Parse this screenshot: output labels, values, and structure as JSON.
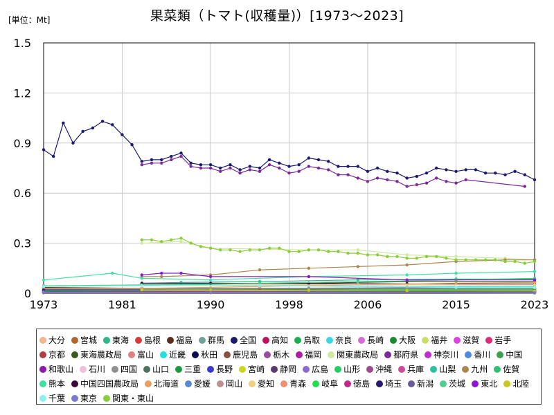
{
  "chart_data": {
    "type": "line",
    "title": "果菜類（トマト(収穫量)）[1973～2023]",
    "unit_label": "[単位：Mt]",
    "xlabel": "",
    "ylabel": "",
    "xlim": [
      1973,
      2023
    ],
    "ylim": [
      0,
      1.5
    ],
    "yticks": [
      0,
      0.3,
      0.6,
      0.9,
      1.2,
      1.5
    ],
    "ytick_labels": [
      "0",
      "0.3",
      "0.6",
      "0.9",
      "1.2",
      "1.5"
    ],
    "xticks": [
      1973,
      1981,
      1990,
      1998,
      2006,
      2015,
      2023
    ],
    "grid": true,
    "legend_position": "bottom",
    "series": [
      {
        "name": "大分",
        "color": "#f5b58a",
        "x": [
          1973,
          1983,
          1995,
          2010,
          2023
        ],
        "values": [
          0.01,
          0.01,
          0.012,
          0.015,
          0.016
        ]
      },
      {
        "name": "宮城",
        "color": "#b4632c",
        "x": [
          1973,
          1983,
          1995,
          2010,
          2023
        ],
        "values": [
          0.012,
          0.01,
          0.01,
          0.012,
          0.012
        ]
      },
      {
        "name": "東海",
        "color": "#2cb88a",
        "x": [
          1983,
          1987,
          1995,
          2005,
          2015,
          2023
        ],
        "values": [
          0.06,
          0.065,
          0.07,
          0.08,
          0.085,
          0.085
        ]
      },
      {
        "name": "島根",
        "color": "#d83a3a",
        "x": [
          1973,
          1990,
          2023
        ],
        "values": [
          0.005,
          0.004,
          0.004
        ]
      },
      {
        "name": "福島",
        "color": "#5a2e1e",
        "x": [
          1973,
          1983,
          1995,
          2005,
          2015,
          2023
        ],
        "values": [
          0.035,
          0.03,
          0.03,
          0.03,
          0.03,
          0.03
        ]
      },
      {
        "name": "群馬",
        "color": "#6fa09a",
        "x": [
          1973,
          1983,
          1995,
          2005,
          2015,
          2023
        ],
        "values": [
          0.025,
          0.025,
          0.025,
          0.025,
          0.022,
          0.022
        ]
      },
      {
        "name": "全国",
        "color": "#1a1a6e",
        "x": [
          1973,
          1974,
          1975,
          1976,
          1977,
          1978,
          1979,
          1980,
          1981,
          1982,
          1983,
          1984,
          1985,
          1986,
          1987,
          1988,
          1989,
          1990,
          1991,
          1992,
          1993,
          1994,
          1995,
          1996,
          1997,
          1998,
          1999,
          2000,
          2001,
          2002,
          2003,
          2004,
          2005,
          2006,
          2007,
          2008,
          2009,
          2010,
          2011,
          2012,
          2013,
          2014,
          2015,
          2016,
          2017,
          2018,
          2019,
          2020,
          2021,
          2022,
          2023
        ],
        "values": [
          0.86,
          0.82,
          1.02,
          0.9,
          0.97,
          0.99,
          1.03,
          1.01,
          0.95,
          0.89,
          0.79,
          0.8,
          0.8,
          0.82,
          0.84,
          0.78,
          0.77,
          0.77,
          0.75,
          0.77,
          0.74,
          0.76,
          0.75,
          0.8,
          0.78,
          0.76,
          0.77,
          0.81,
          0.8,
          0.79,
          0.76,
          0.76,
          0.76,
          0.73,
          0.75,
          0.73,
          0.72,
          0.69,
          0.7,
          0.72,
          0.75,
          0.74,
          0.73,
          0.74,
          0.74,
          0.72,
          0.72,
          0.71,
          0.73,
          0.71,
          0.68
        ]
      },
      {
        "name": "高知",
        "color": "#c01060",
        "x": [
          1973,
          1983,
          1995,
          2005,
          2015,
          2023
        ],
        "values": [
          0.02,
          0.02,
          0.02,
          0.025,
          0.025,
          0.025
        ]
      },
      {
        "name": "鳥取",
        "color": "#1ab050",
        "x": [
          1973,
          1990,
          2023
        ],
        "values": [
          0.01,
          0.01,
          0.008
        ]
      },
      {
        "name": "奈良",
        "color": "#3ad8e0",
        "x": [
          1973,
          1990,
          2023
        ],
        "values": [
          0.005,
          0.004,
          0.004
        ]
      },
      {
        "name": "長崎",
        "color": "#d86ad8",
        "x": [
          1973,
          1983,
          1995,
          2010,
          2023
        ],
        "values": [
          0.01,
          0.012,
          0.012,
          0.012,
          0.012
        ]
      },
      {
        "name": "大阪",
        "color": "#1a8a30",
        "x": [
          1973,
          1990,
          2023
        ],
        "values": [
          0.004,
          0.003,
          0.002
        ]
      },
      {
        "name": "福井",
        "color": "#c8e06a",
        "x": [
          1973,
          1990,
          2023
        ],
        "values": [
          0.005,
          0.004,
          0.004
        ]
      },
      {
        "name": "滋賀",
        "color": "#e040e0",
        "x": [
          1973,
          1990,
          2023
        ],
        "values": [
          0.005,
          0.004,
          0.004
        ]
      },
      {
        "name": "岩手",
        "color": "#e02a7a",
        "x": [
          1973,
          1983,
          1995,
          2010,
          2023
        ],
        "values": [
          0.01,
          0.012,
          0.014,
          0.015,
          0.015
        ]
      },
      {
        "name": "京都",
        "color": "#b04040",
        "x": [
          1973,
          1990,
          2023
        ],
        "values": [
          0.006,
          0.005,
          0.004
        ]
      },
      {
        "name": "東海農政局",
        "color": "#3a5a1a",
        "x": [
          1983,
          1990,
          2000,
          2010,
          2023
        ],
        "values": [
          0.05,
          0.055,
          0.06,
          0.07,
          0.07
        ]
      },
      {
        "name": "富山",
        "color": "#e08080",
        "x": [
          1973,
          1990,
          2023
        ],
        "values": [
          0.003,
          0.003,
          0.002
        ]
      },
      {
        "name": "近畿",
        "color": "#20e0e0",
        "x": [
          1983,
          1990,
          2000,
          2010,
          2023
        ],
        "values": [
          0.05,
          0.05,
          0.045,
          0.04,
          0.04
        ]
      },
      {
        "name": "秋田",
        "color": "#0a0a50",
        "x": [
          1973,
          1990,
          2023
        ],
        "values": [
          0.01,
          0.01,
          0.01
        ]
      },
      {
        "name": "鹿児島",
        "color": "#8a5040",
        "x": [
          1973,
          1990,
          2023
        ],
        "values": [
          0.005,
          0.006,
          0.006
        ]
      },
      {
        "name": "栃木",
        "color": "#9a4aa0",
        "x": [
          1973,
          1983,
          1995,
          2010,
          2023
        ],
        "values": [
          0.03,
          0.03,
          0.03,
          0.033,
          0.033
        ]
      },
      {
        "name": "福岡",
        "color": "#b01aa0",
        "x": [
          1973,
          1983,
          1995,
          2010,
          2023
        ],
        "values": [
          0.02,
          0.02,
          0.02,
          0.02,
          0.018
        ]
      },
      {
        "name": "関東農政局",
        "color": "#d0e8a0",
        "x": [
          1983,
          1987,
          1990,
          2000,
          2005,
          2010,
          2015,
          2020,
          2023
        ],
        "values": [
          0.3,
          0.31,
          0.27,
          0.26,
          0.26,
          0.23,
          0.22,
          0.21,
          0.2
        ]
      },
      {
        "name": "都府県",
        "color": "#7a2a9a",
        "x": [
          1983,
          1984,
          1985,
          1986,
          1987,
          1988,
          1989,
          1990,
          1991,
          1992,
          1993,
          1994,
          1995,
          1996,
          1997,
          1998,
          1999,
          2000,
          2001,
          2002,
          2003,
          2004,
          2005,
          2006,
          2007,
          2008,
          2009,
          2010,
          2011,
          2012,
          2013,
          2014,
          2015,
          2016,
          2022
        ],
        "values": [
          0.77,
          0.78,
          0.78,
          0.8,
          0.82,
          0.76,
          0.75,
          0.75,
          0.73,
          0.75,
          0.72,
          0.74,
          0.73,
          0.77,
          0.75,
          0.72,
          0.73,
          0.76,
          0.75,
          0.74,
          0.71,
          0.71,
          0.69,
          0.67,
          0.69,
          0.68,
          0.67,
          0.64,
          0.65,
          0.66,
          0.69,
          0.67,
          0.66,
          0.68,
          0.64
        ]
      },
      {
        "name": "神奈川",
        "color": "#c02ad0",
        "x": [
          1973,
          1990,
          2023
        ],
        "values": [
          0.01,
          0.01,
          0.009
        ]
      },
      {
        "name": "香川",
        "color": "#4a8ae0",
        "x": [
          1973,
          1990,
          2023
        ],
        "values": [
          0.005,
          0.004,
          0.003
        ]
      },
      {
        "name": "中国",
        "color": "#3aa050",
        "x": [
          1983,
          1990,
          2000,
          2010,
          2023
        ],
        "values": [
          0.03,
          0.03,
          0.028,
          0.026,
          0.025
        ]
      },
      {
        "name": "和歌山",
        "color": "#8a1ab0",
        "x": [
          1973,
          1990,
          2023
        ],
        "values": [
          0.008,
          0.007,
          0.006
        ]
      },
      {
        "name": "石川",
        "color": "#f0c0d8",
        "x": [
          1973,
          1990,
          2023
        ],
        "values": [
          0.006,
          0.005,
          0.004
        ]
      },
      {
        "name": "四国",
        "color": "#909090",
        "x": [
          1983,
          1990,
          2000,
          2010,
          2023
        ],
        "values": [
          0.03,
          0.03,
          0.03,
          0.03,
          0.03
        ]
      },
      {
        "name": "山口",
        "color": "#507060",
        "x": [
          1973,
          1990,
          2023
        ],
        "values": [
          0.005,
          0.004,
          0.004
        ]
      },
      {
        "name": "三重",
        "color": "#1a9a40",
        "x": [
          1973,
          1990,
          2023
        ],
        "values": [
          0.01,
          0.01,
          0.008
        ]
      },
      {
        "name": "長野",
        "color": "#3a3ad0",
        "x": [
          1973,
          1990,
          2023
        ],
        "values": [
          0.015,
          0.015,
          0.015
        ]
      },
      {
        "name": "宮崎",
        "color": "#c8d820",
        "x": [
          1973,
          1990,
          2023
        ],
        "values": [
          0.01,
          0.012,
          0.012
        ]
      },
      {
        "name": "静岡",
        "color": "#5a3a6a",
        "x": [
          1973,
          1990,
          2023
        ],
        "values": [
          0.015,
          0.015,
          0.013
        ]
      },
      {
        "name": "広島",
        "color": "#8a6ad0",
        "x": [
          1973,
          1990,
          2023
        ],
        "values": [
          0.01,
          0.01,
          0.008
        ]
      },
      {
        "name": "山形",
        "color": "#20d060",
        "x": [
          1973,
          1990,
          2023
        ],
        "values": [
          0.01,
          0.012,
          0.012
        ]
      },
      {
        "name": "沖縄",
        "color": "#a04a8a",
        "x": [
          1973,
          1990,
          2023
        ],
        "values": [
          0.003,
          0.004,
          0.004
        ]
      },
      {
        "name": "兵庫",
        "color": "#d04a9a",
        "x": [
          1973,
          1990,
          2023
        ],
        "values": [
          0.01,
          0.01,
          0.008
        ]
      },
      {
        "name": "山梨",
        "color": "#2ac0a0",
        "x": [
          1973,
          1990,
          2023
        ],
        "values": [
          0.004,
          0.004,
          0.003
        ]
      },
      {
        "name": "九州",
        "color": "#a88850",
        "x": [
          1983,
          1985,
          1990,
          1995,
          2000,
          2005,
          2010,
          2015,
          2020,
          2023
        ],
        "values": [
          0.1,
          0.1,
          0.11,
          0.14,
          0.15,
          0.16,
          0.17,
          0.19,
          0.2,
          0.2
        ]
      },
      {
        "name": "佐賀",
        "color": "#30c070",
        "x": [
          1973,
          1990,
          2023
        ],
        "values": [
          0.005,
          0.005,
          0.005
        ]
      },
      {
        "name": "熊本",
        "color": "#40e0a0",
        "x": [
          1973,
          1980,
          1983,
          1990,
          2000,
          2010,
          2015,
          2023
        ],
        "values": [
          0.08,
          0.12,
          0.09,
          0.08,
          0.1,
          0.11,
          0.12,
          0.13
        ]
      },
      {
        "name": "中国四国農政局",
        "color": "#3a0a3a",
        "x": [
          1983,
          1990,
          2000,
          2010,
          2023
        ],
        "values": [
          0.06,
          0.06,
          0.058,
          0.056,
          0.055
        ]
      },
      {
        "name": "北海道",
        "color": "#e8a060",
        "x": [
          1973,
          1983,
          1995,
          2005,
          2015,
          2023
        ],
        "values": [
          0.03,
          0.03,
          0.04,
          0.05,
          0.06,
          0.065
        ]
      },
      {
        "name": "愛媛",
        "color": "#5a8ad0",
        "x": [
          1973,
          1990,
          2023
        ],
        "values": [
          0.008,
          0.007,
          0.006
        ]
      },
      {
        "name": "岡山",
        "color": "#c09090",
        "x": [
          1973,
          1990,
          2023
        ],
        "values": [
          0.006,
          0.006,
          0.005
        ]
      },
      {
        "name": "愛知",
        "color": "#f0d080",
        "x": [
          1973,
          1983,
          1995,
          2010,
          2023
        ],
        "values": [
          0.04,
          0.045,
          0.05,
          0.05,
          0.05
        ]
      },
      {
        "name": "青森",
        "color": "#f09070",
        "x": [
          1973,
          1990,
          2023
        ],
        "values": [
          0.01,
          0.015,
          0.018
        ]
      },
      {
        "name": "岐阜",
        "color": "#20e050",
        "x": [
          1973,
          1990,
          2023
        ],
        "values": [
          0.015,
          0.02,
          0.025
        ]
      },
      {
        "name": "徳島",
        "color": "#c02a8a",
        "x": [
          1973,
          1990,
          2023
        ],
        "values": [
          0.004,
          0.004,
          0.003
        ]
      },
      {
        "name": "埼玉",
        "color": "#2a1a6a",
        "x": [
          1973,
          1990,
          2023
        ],
        "values": [
          0.02,
          0.02,
          0.016
        ]
      },
      {
        "name": "新潟",
        "color": "#6a5a9a",
        "x": [
          1973,
          1990,
          2023
        ],
        "values": [
          0.01,
          0.01,
          0.008
        ]
      },
      {
        "name": "茨城",
        "color": "#50d090",
        "x": [
          1973,
          1983,
          1995,
          2005,
          2015,
          2023
        ],
        "values": [
          0.045,
          0.05,
          0.06,
          0.07,
          0.08,
          0.09
        ]
      },
      {
        "name": "東北",
        "color": "#8a1ad0",
        "x": [
          1983,
          1985,
          1987,
          1990,
          2000,
          2010,
          2023
        ],
        "values": [
          0.11,
          0.12,
          0.12,
          0.1,
          0.1,
          0.08,
          0.08
        ]
      },
      {
        "name": "北陸",
        "color": "#c8c820",
        "x": [
          1983,
          1990,
          2000,
          2010,
          2023
        ],
        "values": [
          0.02,
          0.02,
          0.018,
          0.016,
          0.015
        ]
      },
      {
        "name": "千葉",
        "color": "#90f0f0",
        "x": [
          1973,
          1983,
          1995,
          2005,
          2015,
          2023
        ],
        "values": [
          0.04,
          0.045,
          0.045,
          0.04,
          0.035,
          0.035
        ]
      },
      {
        "name": "東京",
        "color": "#7a7ad0",
        "x": [
          1973,
          1990,
          2023
        ],
        "values": [
          0.005,
          0.004,
          0.003
        ]
      },
      {
        "name": "関東・東山",
        "color": "#8acc3a",
        "x": [
          1983,
          1984,
          1985,
          1986,
          1987,
          1988,
          1989,
          1990,
          1991,
          1992,
          1993,
          1994,
          1995,
          1996,
          1997,
          1998,
          1999,
          2000,
          2001,
          2002,
          2003,
          2004,
          2005,
          2006,
          2007,
          2008,
          2009,
          2010,
          2011,
          2012,
          2013,
          2014,
          2015,
          2016,
          2017,
          2018,
          2019,
          2020,
          2021,
          2022,
          2023
        ],
        "values": [
          0.32,
          0.32,
          0.31,
          0.32,
          0.33,
          0.3,
          0.28,
          0.27,
          0.26,
          0.26,
          0.25,
          0.26,
          0.26,
          0.27,
          0.27,
          0.25,
          0.25,
          0.26,
          0.26,
          0.25,
          0.25,
          0.24,
          0.24,
          0.23,
          0.23,
          0.22,
          0.22,
          0.21,
          0.21,
          0.22,
          0.22,
          0.21,
          0.2,
          0.2,
          0.2,
          0.2,
          0.2,
          0.19,
          0.19,
          0.18,
          0.19
        ]
      }
    ]
  }
}
